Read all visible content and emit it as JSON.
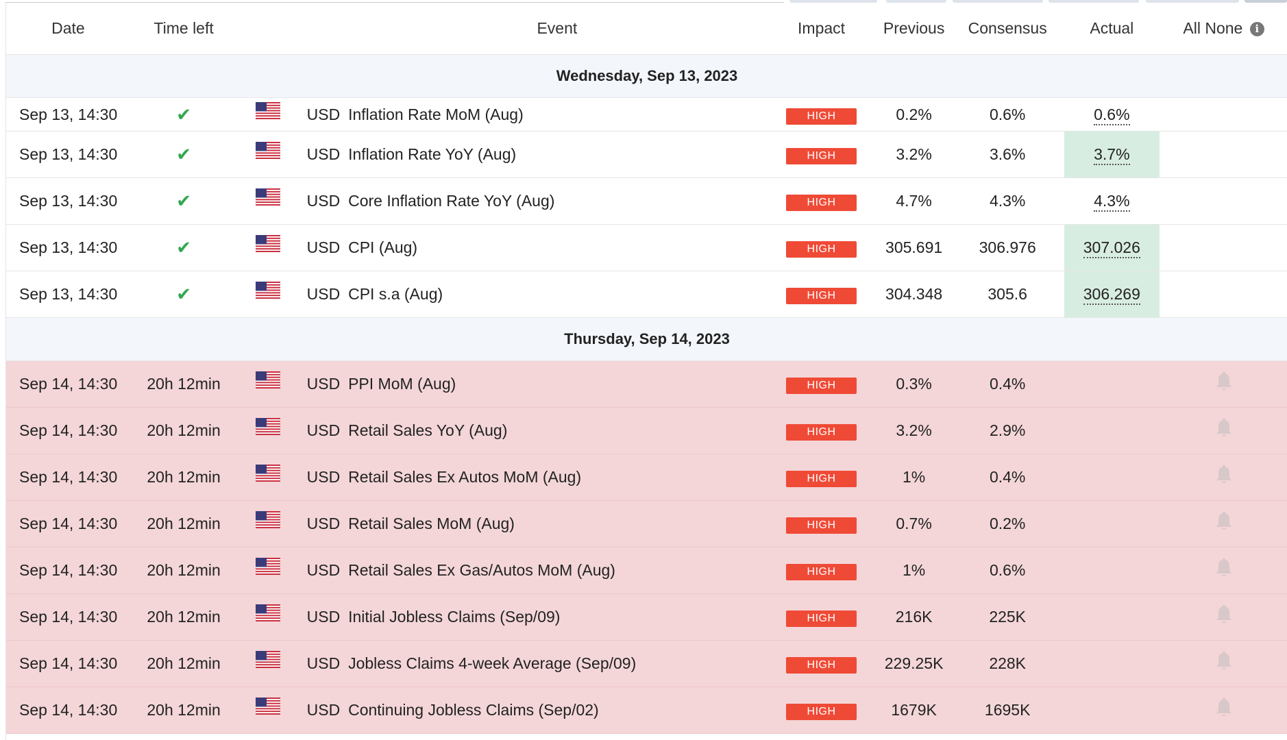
{
  "header": {
    "date": "Date",
    "time_left": "Time left",
    "event": "Event",
    "impact": "Impact",
    "previous": "Previous",
    "consensus": "Consensus",
    "actual": "Actual",
    "all": "All",
    "none": "None",
    "info_icon_glyph": "i"
  },
  "colors": {
    "high_badge": "#ef4a36",
    "upcoming_row": "#f4d6d8",
    "actual_better": "#d8ede1",
    "day_header_bg": "#f3f6fb",
    "check": "#2fa84f"
  },
  "days": [
    {
      "label": "Wednesday, Sep 13, 2023",
      "events": [
        {
          "date": "Sep 13, 14:30",
          "time_left": "",
          "status_icon": "check-icon",
          "flag": "us-flag-icon",
          "currency": "USD",
          "event": "Inflation Rate MoM (Aug)",
          "impact": "HIGH",
          "previous": "0.2%",
          "consensus": "0.6%",
          "actual": "0.6%",
          "actual_highlight": false
        },
        {
          "date": "Sep 13, 14:30",
          "time_left": "",
          "status_icon": "check-icon",
          "flag": "us-flag-icon",
          "currency": "USD",
          "event": "Inflation Rate YoY (Aug)",
          "impact": "HIGH",
          "previous": "3.2%",
          "consensus": "3.6%",
          "actual": "3.7%",
          "actual_highlight": true
        },
        {
          "date": "Sep 13, 14:30",
          "time_left": "",
          "status_icon": "check-icon",
          "flag": "us-flag-icon",
          "currency": "USD",
          "event": "Core Inflation Rate YoY (Aug)",
          "impact": "HIGH",
          "previous": "4.7%",
          "consensus": "4.3%",
          "actual": "4.3%",
          "actual_highlight": false
        },
        {
          "date": "Sep 13, 14:30",
          "time_left": "",
          "status_icon": "check-icon",
          "flag": "us-flag-icon",
          "currency": "USD",
          "event": "CPI (Aug)",
          "impact": "HIGH",
          "previous": "305.691",
          "consensus": "306.976",
          "actual": "307.026",
          "actual_highlight": true
        },
        {
          "date": "Sep 13, 14:30",
          "time_left": "",
          "status_icon": "check-icon",
          "flag": "us-flag-icon",
          "currency": "USD",
          "event": "CPI s.a (Aug)",
          "impact": "HIGH",
          "previous": "304.348",
          "consensus": "305.6",
          "actual": "306.269",
          "actual_highlight": true
        }
      ]
    },
    {
      "label": "Thursday, Sep 14, 2023",
      "events": [
        {
          "date": "Sep 14, 14:30",
          "time_left": "20h 12min",
          "flag": "us-flag-icon",
          "currency": "USD",
          "event": "PPI MoM (Aug)",
          "impact": "HIGH",
          "previous": "0.3%",
          "consensus": "0.4%",
          "actual": "",
          "alert_icon": "bell-icon"
        },
        {
          "date": "Sep 14, 14:30",
          "time_left": "20h 12min",
          "flag": "us-flag-icon",
          "currency": "USD",
          "event": "Retail Sales YoY (Aug)",
          "impact": "HIGH",
          "previous": "3.2%",
          "consensus": "2.9%",
          "actual": "",
          "alert_icon": "bell-icon"
        },
        {
          "date": "Sep 14, 14:30",
          "time_left": "20h 12min",
          "flag": "us-flag-icon",
          "currency": "USD",
          "event": "Retail Sales Ex Autos MoM (Aug)",
          "impact": "HIGH",
          "previous": "1%",
          "consensus": "0.4%",
          "actual": "",
          "alert_icon": "bell-icon"
        },
        {
          "date": "Sep 14, 14:30",
          "time_left": "20h 12min",
          "flag": "us-flag-icon",
          "currency": "USD",
          "event": "Retail Sales MoM (Aug)",
          "impact": "HIGH",
          "previous": "0.7%",
          "consensus": "0.2%",
          "actual": "",
          "alert_icon": "bell-icon"
        },
        {
          "date": "Sep 14, 14:30",
          "time_left": "20h 12min",
          "flag": "us-flag-icon",
          "currency": "USD",
          "event": "Retail Sales Ex Gas/Autos MoM (Aug)",
          "impact": "HIGH",
          "previous": "1%",
          "consensus": "0.6%",
          "actual": "",
          "alert_icon": "bell-icon"
        },
        {
          "date": "Sep 14, 14:30",
          "time_left": "20h 12min",
          "flag": "us-flag-icon",
          "currency": "USD",
          "event": "Initial Jobless Claims (Sep/09)",
          "impact": "HIGH",
          "previous": "216K",
          "consensus": "225K",
          "actual": "",
          "alert_icon": "bell-icon"
        },
        {
          "date": "Sep 14, 14:30",
          "time_left": "20h 12min",
          "flag": "us-flag-icon",
          "currency": "USD",
          "event": "Jobless Claims 4-week Average (Sep/09)",
          "impact": "HIGH",
          "previous": "229.25K",
          "consensus": "228K",
          "actual": "",
          "alert_icon": "bell-icon"
        },
        {
          "date": "Sep 14, 14:30",
          "time_left": "20h 12min",
          "flag": "us-flag-icon",
          "currency": "USD",
          "event": "Continuing Jobless Claims (Sep/02)",
          "impact": "HIGH",
          "previous": "1679K",
          "consensus": "1695K",
          "actual": "",
          "alert_icon": "bell-icon"
        }
      ]
    }
  ]
}
